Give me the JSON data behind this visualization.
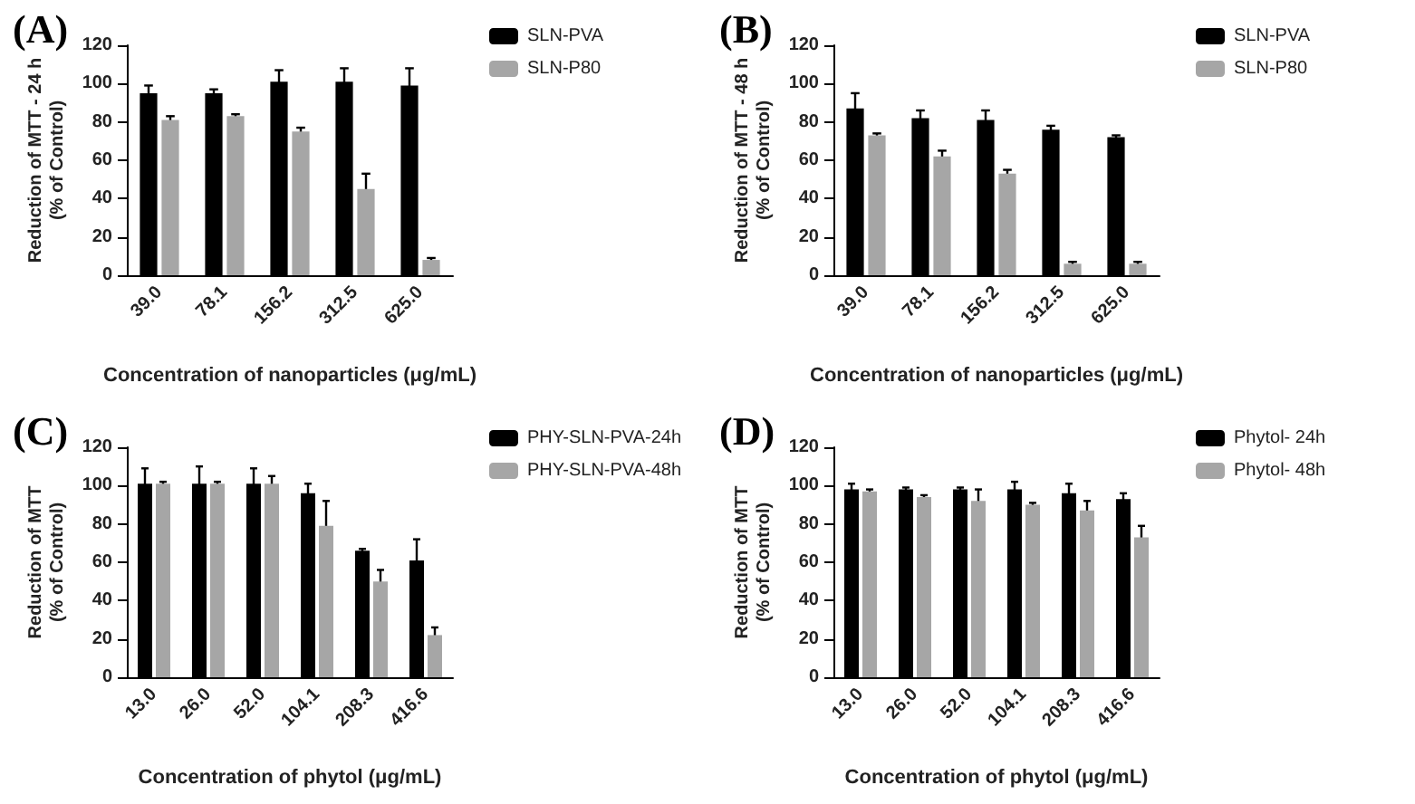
{
  "chart_data": [
    {
      "type": "bar",
      "title": "(A)",
      "xlabel": "Concentration of nanoparticles (μg/mL)",
      "ylabel": "Reduction of MTT - 24 h\n(% of Control)",
      "categories": [
        "39.0",
        "78.1",
        "156.2",
        "312.5",
        "625.0"
      ],
      "series": [
        {
          "name": "SLN-PVA",
          "color": "#000000",
          "values": [
            95,
            95,
            101,
            101,
            99
          ],
          "errors": [
            4,
            2,
            6,
            7,
            9
          ]
        },
        {
          "name": "SLN-P80",
          "color": "#a6a6a6",
          "values": [
            81,
            83,
            75,
            45,
            8
          ],
          "errors": [
            2,
            1,
            2,
            8,
            1
          ]
        }
      ],
      "ylim": [
        0,
        120
      ],
      "yticks": [
        0,
        20,
        40,
        60,
        80,
        100,
        120
      ],
      "legend": "top right",
      "grid": false
    },
    {
      "type": "bar",
      "title": "(B)",
      "xlabel": "Concentration of nanoparticles (μg/mL)",
      "ylabel": "Reduction of MTT - 48 h\n(% of Control)",
      "categories": [
        "39.0",
        "78.1",
        "156.2",
        "312.5",
        "625.0"
      ],
      "series": [
        {
          "name": "SLN-PVA",
          "color": "#000000",
          "values": [
            87,
            82,
            81,
            76,
            72
          ],
          "errors": [
            8,
            4,
            5,
            2,
            1
          ]
        },
        {
          "name": "SLN-P80",
          "color": "#a6a6a6",
          "values": [
            73,
            62,
            53,
            6,
            6
          ],
          "errors": [
            1,
            3,
            2,
            1,
            1
          ]
        }
      ],
      "ylim": [
        0,
        120
      ],
      "yticks": [
        0,
        20,
        40,
        60,
        80,
        100,
        120
      ],
      "legend": "top right",
      "grid": false
    },
    {
      "type": "bar",
      "title": "(C)",
      "xlabel": "Concentration of phytol (μg/mL)",
      "ylabel": "Reduction of MTT\n(% of Control)",
      "categories": [
        "13.0",
        "26.0",
        "52.0",
        "104.1",
        "208.3",
        "416.6"
      ],
      "series": [
        {
          "name": "PHY-SLN-PVA-24h",
          "color": "#000000",
          "values": [
            101,
            101,
            101,
            96,
            66,
            61
          ],
          "errors": [
            8,
            9,
            8,
            5,
            1,
            11
          ]
        },
        {
          "name": "PHY-SLN-PVA-48h",
          "color": "#a6a6a6",
          "values": [
            101,
            101,
            101,
            79,
            50,
            22
          ],
          "errors": [
            1,
            1,
            4,
            13,
            6,
            4
          ]
        }
      ],
      "ylim": [
        0,
        120
      ],
      "yticks": [
        0,
        20,
        40,
        60,
        80,
        100,
        120
      ],
      "legend": "top right",
      "grid": false
    },
    {
      "type": "bar",
      "title": "(D)",
      "xlabel": "Concentration of phytol (μg/mL)",
      "ylabel": "Reduction of MTT\n(% of Control)",
      "categories": [
        "13.0",
        "26.0",
        "52.0",
        "104.1",
        "208.3",
        "416.6"
      ],
      "series": [
        {
          "name": "Phytol- 24h",
          "color": "#000000",
          "values": [
            98,
            98,
            98,
            98,
            96,
            93
          ],
          "errors": [
            3,
            1,
            1,
            4,
            5,
            3
          ]
        },
        {
          "name": "Phytol- 48h",
          "color": "#a6a6a6",
          "values": [
            97,
            94,
            92,
            90,
            87,
            73
          ],
          "errors": [
            1,
            1,
            6,
            1,
            5,
            6
          ]
        }
      ],
      "ylim": [
        0,
        120
      ],
      "yticks": [
        0,
        20,
        40,
        60,
        80,
        100,
        120
      ],
      "legend": "top right",
      "grid": false
    }
  ]
}
